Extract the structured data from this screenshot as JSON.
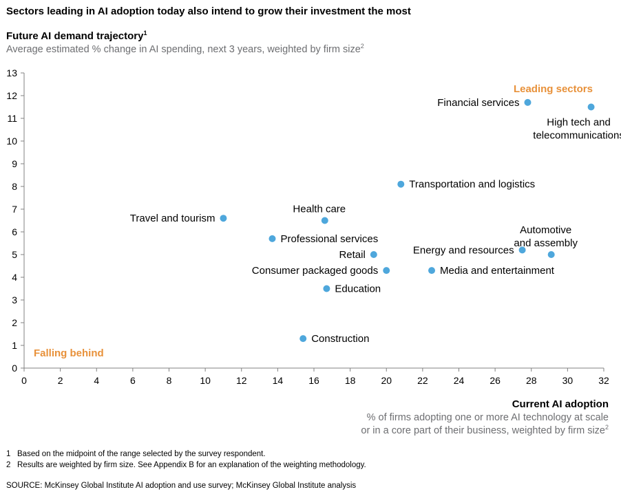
{
  "headline": "Sectors leading in AI adoption today also intend to grow their investment the most",
  "y_title": "Future AI demand trajectory",
  "y_title_sup": "1",
  "y_subtitle": "Average estimated % change in AI spending, next 3 years, weighted by firm size",
  "y_subtitle_sup": "2",
  "x_title": "Current AI adoption",
  "x_subtitle_line1": "% of firms adopting one or more AI technology at scale",
  "x_subtitle_line2": "or in a core part of their business, weighted by firm size",
  "x_subtitle_sup": "2",
  "footnotes": [
    {
      "num": "1",
      "text": "Based on the midpoint of the range selected by the survey respondent."
    },
    {
      "num": "2",
      "text": "Results are weighted by firm size. See Appendix B for an explanation of the weighting methodology."
    }
  ],
  "source": "SOURCE: McKinsey Global Institute AI adoption and use survey; McKinsey Global Institute analysis",
  "colors": {
    "point": "#4ea7dc",
    "accent": "#e8913a",
    "axis": "#808080",
    "subtitle": "#6d6e71"
  },
  "chart_data": {
    "type": "scatter",
    "xlim": [
      0,
      32
    ],
    "ylim": [
      0,
      13
    ],
    "xticks": [
      0,
      2,
      4,
      6,
      8,
      10,
      12,
      14,
      16,
      18,
      20,
      22,
      24,
      26,
      28,
      30,
      32
    ],
    "yticks": [
      0,
      1,
      2,
      3,
      4,
      5,
      6,
      7,
      8,
      9,
      10,
      11,
      12,
      13
    ],
    "grid": false,
    "annotations": [
      {
        "text": "Leading sectors",
        "position": "top-right"
      },
      {
        "text": "Falling behind",
        "position": "bottom-left"
      }
    ],
    "points": [
      {
        "label": [
          "Financial services"
        ],
        "x": 27.8,
        "y": 11.7,
        "anchor": "left"
      },
      {
        "label": [
          "High tech and",
          "telecommunications"
        ],
        "x": 31.3,
        "y": 11.5,
        "anchor": "below"
      },
      {
        "label": [
          "Transportation and logistics"
        ],
        "x": 20.8,
        "y": 8.1,
        "anchor": "right"
      },
      {
        "label": [
          "Travel and tourism"
        ],
        "x": 11.0,
        "y": 6.6,
        "anchor": "left"
      },
      {
        "label": [
          "Health care"
        ],
        "x": 16.6,
        "y": 6.5,
        "anchor": "above"
      },
      {
        "label": [
          "Professional services"
        ],
        "x": 13.7,
        "y": 5.7,
        "anchor": "right"
      },
      {
        "label": [
          "Automotive",
          "and assembly"
        ],
        "x": 29.1,
        "y": 5.0,
        "anchor": "above"
      },
      {
        "label": [
          "Energy and resources"
        ],
        "x": 27.5,
        "y": 5.2,
        "anchor": "left"
      },
      {
        "label": [
          "Retail"
        ],
        "x": 19.3,
        "y": 5.0,
        "anchor": "left"
      },
      {
        "label": [
          "Consumer packaged goods"
        ],
        "x": 20.0,
        "y": 4.3,
        "anchor": "left"
      },
      {
        "label": [
          "Media and entertainment"
        ],
        "x": 22.5,
        "y": 4.3,
        "anchor": "right"
      },
      {
        "label": [
          "Education"
        ],
        "x": 16.7,
        "y": 3.5,
        "anchor": "right"
      },
      {
        "label": [
          "Construction"
        ],
        "x": 15.4,
        "y": 1.3,
        "anchor": "right"
      }
    ]
  }
}
